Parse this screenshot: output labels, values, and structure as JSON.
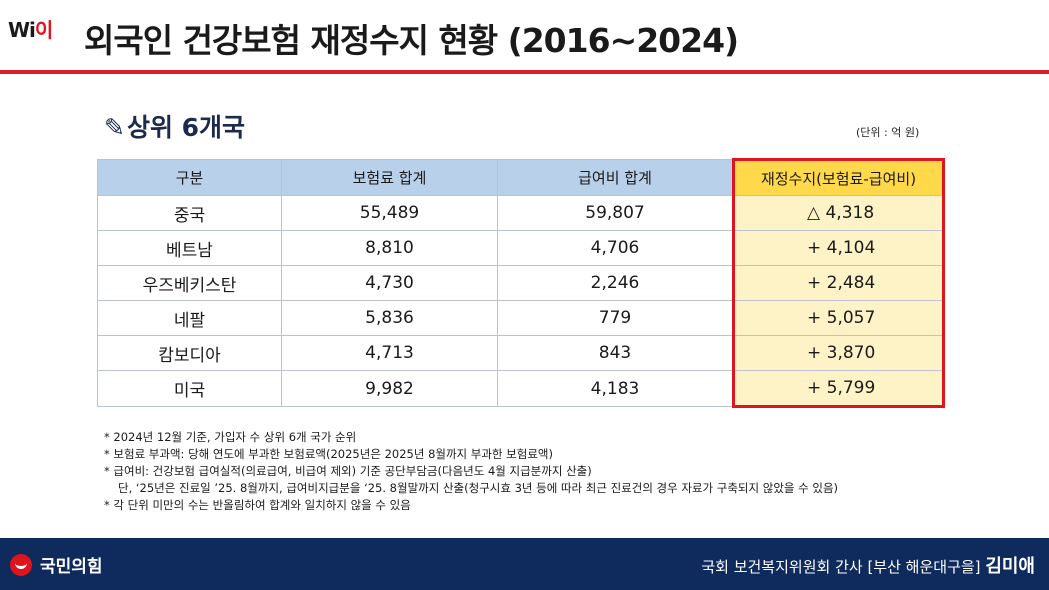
{
  "header": {
    "logo_text": "Wi",
    "logo_text2": "이",
    "title": "외국인 건강보험 재정수지 현황 (2016~2024)"
  },
  "section": {
    "pin_icon": "pushpin-icon",
    "title": "상위 6개국",
    "unit": "(단위 : 억 원)"
  },
  "table": {
    "headers": [
      "구분",
      "보험료 합계",
      "급여비 합계",
      "재정수지(보험료-급여비)"
    ],
    "rows": [
      {
        "country": "중국",
        "premium": "55,489",
        "benefit": "59,807",
        "balance": "△ 4,318",
        "sign": "neg"
      },
      {
        "country": "베트남",
        "premium": "8,810",
        "benefit": "4,706",
        "balance": "+ 4,104",
        "sign": "pos"
      },
      {
        "country": "우즈베키스탄",
        "premium": "4,730",
        "benefit": "2,246",
        "balance": "+ 2,484",
        "sign": "pos"
      },
      {
        "country": "네팔",
        "premium": "5,836",
        "benefit": "779",
        "balance": "+ 5,057",
        "sign": "pos"
      },
      {
        "country": "캄보디아",
        "premium": "4,713",
        "benefit": "843",
        "balance": "+ 3,870",
        "sign": "pos"
      },
      {
        "country": "미국",
        "premium": "9,982",
        "benefit": "4,183",
        "balance": "+ 5,799",
        "sign": "pos"
      }
    ],
    "highlight_color": "#e0141e"
  },
  "notes": [
    "* 2024년 12월 기준, 가입자 수 상위 6개 국가 순위",
    "* 보험료 부과액: 당해 연도에 부과한 보험료액(2025년은 2025년 8월까지 부과한 보험료액)",
    "* 급여비: 건강보험 급여실적(의료급여, 비급여 제외) 기준 공단부담금(다음년도 4월 지급분까지 산출)",
    "단, ‘25년은 진료일 ’25. 8월까지, 급여비지급분을 ‘25. 8월말까지 산출(청구시효 3년 등에 따라 최근 진료건의 경우 자료가 구축되지 않았을 수 있음)",
    "* 각 단위 미만의 수는 반올림하여 합계와 일치하지 않을 수 있음"
  ],
  "footer": {
    "party": "국민의힘",
    "member_prefix": "국회 보건복지위원회 간사 [부산 해운대구을]",
    "member_name": "김미애"
  }
}
